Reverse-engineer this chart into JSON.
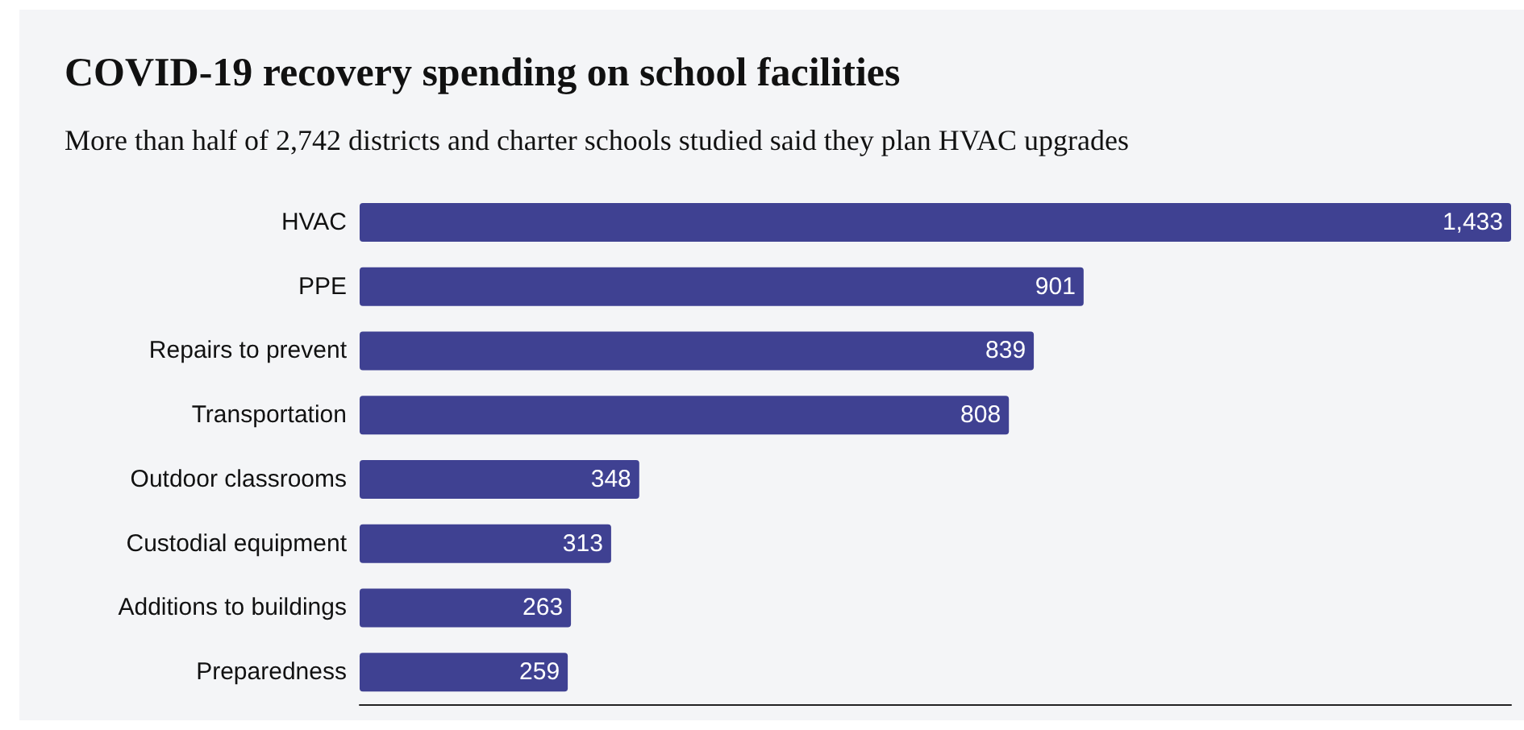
{
  "chart_data": {
    "type": "bar",
    "orientation": "horizontal",
    "title": "COVID-19 recovery spending on school facilities",
    "subtitle": "More than half of 2,742 districts and charter schools studied said they plan HVAC upgrades",
    "categories": [
      "HVAC",
      "PPE",
      "Repairs to prevent",
      "Transportation",
      "Outdoor classrooms",
      "Custodial equipment",
      "Additions to buildings",
      "Preparedness"
    ],
    "values": [
      1433,
      901,
      839,
      808,
      348,
      313,
      263,
      259
    ],
    "value_labels": [
      "1,433",
      "901",
      "839",
      "808",
      "348",
      "313",
      "263",
      "259"
    ],
    "color": "#3f4192",
    "grid": false
  }
}
